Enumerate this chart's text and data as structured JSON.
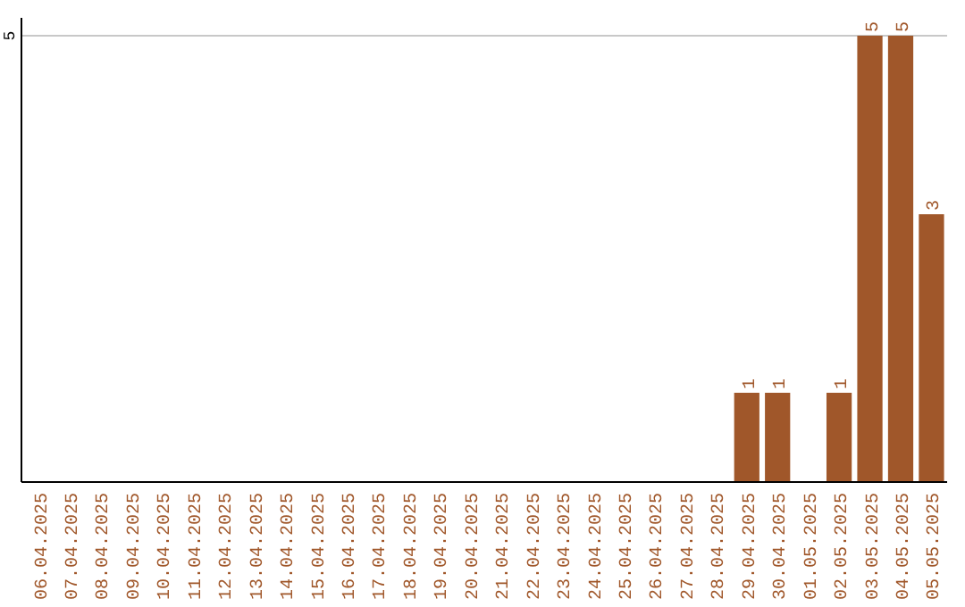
{
  "chart_data": {
    "type": "bar",
    "categories": [
      "06.04.2025",
      "07.04.2025",
      "08.04.2025",
      "09.04.2025",
      "10.04.2025",
      "11.04.2025",
      "12.04.2025",
      "13.04.2025",
      "14.04.2025",
      "15.04.2025",
      "16.04.2025",
      "17.04.2025",
      "18.04.2025",
      "19.04.2025",
      "20.04.2025",
      "21.04.2025",
      "22.04.2025",
      "23.04.2025",
      "24.04.2025",
      "25.04.2025",
      "26.04.2025",
      "27.04.2025",
      "28.04.2025",
      "29.04.2025",
      "30.04.2025",
      "01.05.2025",
      "02.05.2025",
      "03.05.2025",
      "04.05.2025",
      "05.05.2025"
    ],
    "values": [
      null,
      null,
      null,
      null,
      null,
      null,
      null,
      null,
      null,
      null,
      null,
      null,
      null,
      null,
      null,
      null,
      null,
      null,
      null,
      null,
      null,
      null,
      null,
      1,
      1,
      null,
      1,
      5,
      5,
      3
    ],
    "data_labels": true,
    "color": "#a0572a",
    "ylim": [
      0,
      5
    ],
    "yticks": [
      5
    ],
    "ref_lines": [
      {
        "axis": "y",
        "value": 5,
        "color": "#c8c8c8"
      }
    ]
  }
}
